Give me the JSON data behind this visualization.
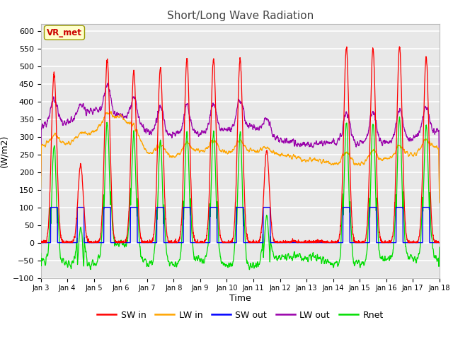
{
  "title": "Short/Long Wave Radiation",
  "xlabel": "Time",
  "ylabel": "(W/m2)",
  "ylim": [
    -100,
    620
  ],
  "yticks": [
    -100,
    -50,
    0,
    50,
    100,
    150,
    200,
    250,
    300,
    350,
    400,
    450,
    500,
    550,
    600
  ],
  "x_tick_labels": [
    "Jan 3",
    "Jan 4",
    "Jan 5",
    "Jan 6",
    "Jan 7",
    "Jan 8",
    "Jan 9",
    "Jan 10",
    "Jan 11",
    "Jan 12",
    "Jan 13",
    "Jan 14",
    "Jan 15",
    "Jan 16",
    "Jan 17",
    "Jan 18"
  ],
  "colors": {
    "SW_in": "#ff0000",
    "LW_in": "#ffa500",
    "SW_out": "#0000ff",
    "LW_out": "#9900aa",
    "Rnet": "#00dd00"
  },
  "legend_labels": [
    "SW in",
    "LW in",
    "SW out",
    "LW out",
    "Rnet"
  ],
  "vr_met_label": "VR_met",
  "vr_met_color": "#cc0000",
  "vr_met_bg": "#ffffcc",
  "plot_bg": "#e8e8e8",
  "n_days": 15
}
